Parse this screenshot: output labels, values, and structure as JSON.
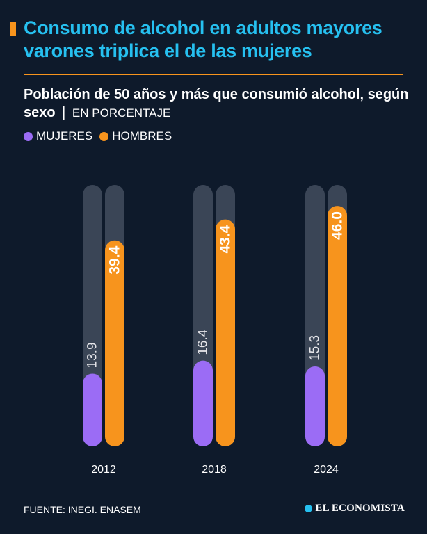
{
  "header": {
    "headline": "Consumo de alcohol en adultos mayores varones triplica el de las mujeres",
    "subtitle_bold": "Población de 50 años y más que consumió alcohol, según sexo",
    "subtitle_sep": "|",
    "subtitle_unit": "EN PORCENTAJE"
  },
  "colors": {
    "background": "#0e1a2b",
    "headline": "#26c0f0",
    "accent": "#f7941d",
    "mujeres": "#9b6cf5",
    "hombres": "#f7941d",
    "track": "#3a4556"
  },
  "chart_data": {
    "type": "bar",
    "orientation": "vertical",
    "title": "Población de 50 años y más que consumió alcohol, según sexo",
    "unit": "EN PORCENTAJE",
    "categories": [
      "2012",
      "2018",
      "2024"
    ],
    "series": [
      {
        "name": "MUJERES",
        "values": [
          13.9,
          16.4,
          15.3
        ]
      },
      {
        "name": "HOMBRES",
        "values": [
          39.4,
          43.4,
          46.0
        ]
      }
    ],
    "value_labels": {
      "MUJERES": [
        "13.9",
        "16.4",
        "15.3"
      ],
      "HOMBRES": [
        "39.4",
        "43.4",
        "46.0"
      ]
    },
    "ylim": [
      0,
      50
    ],
    "grid": false,
    "legend": "top-left"
  },
  "footer": {
    "source": "FUENTE: INEGI. ENASEM",
    "brand": "EL ECONOMISTA"
  }
}
